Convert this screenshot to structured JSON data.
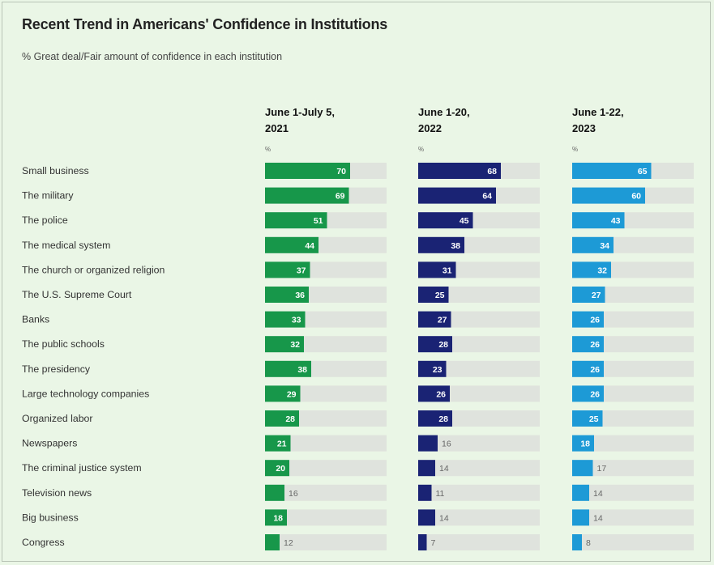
{
  "chart_data": {
    "type": "bar",
    "title": "Recent Trend in Americans' Confidence in Institutions",
    "subtitle": "% Great deal/Fair amount of confidence in each institution",
    "unit_label": "%",
    "xlim": [
      0,
      100
    ],
    "categories": [
      "Small business",
      "The military",
      "The police",
      "The medical system",
      "The church or organized religion",
      "The U.S. Supreme Court",
      "Banks",
      "The public schools",
      "The presidency",
      "Large technology companies",
      "Organized labor",
      "Newspapers",
      "The criminal justice system",
      "Television news",
      "Big business",
      "Congress"
    ],
    "series": [
      {
        "name": "June 1-July 5, 2021",
        "header_lines": [
          "June 1-July 5,",
          "2021"
        ],
        "color": "#17974a",
        "values": [
          70,
          69,
          51,
          44,
          37,
          36,
          33,
          32,
          38,
          29,
          28,
          21,
          20,
          16,
          18,
          12
        ]
      },
      {
        "name": "June 1-20, 2022",
        "header_lines": [
          "June 1-20,",
          "2022"
        ],
        "color": "#1a2374",
        "values": [
          68,
          64,
          45,
          38,
          31,
          25,
          27,
          28,
          23,
          26,
          28,
          16,
          14,
          11,
          14,
          7
        ]
      },
      {
        "name": "June 1-22, 2023",
        "header_lines": [
          "June 1-22,",
          "2023"
        ],
        "color": "#1d9ad6",
        "values": [
          65,
          60,
          43,
          34,
          32,
          27,
          26,
          26,
          26,
          26,
          25,
          18,
          17,
          14,
          14,
          8
        ]
      }
    ],
    "track_color": "#dfe3dd"
  }
}
